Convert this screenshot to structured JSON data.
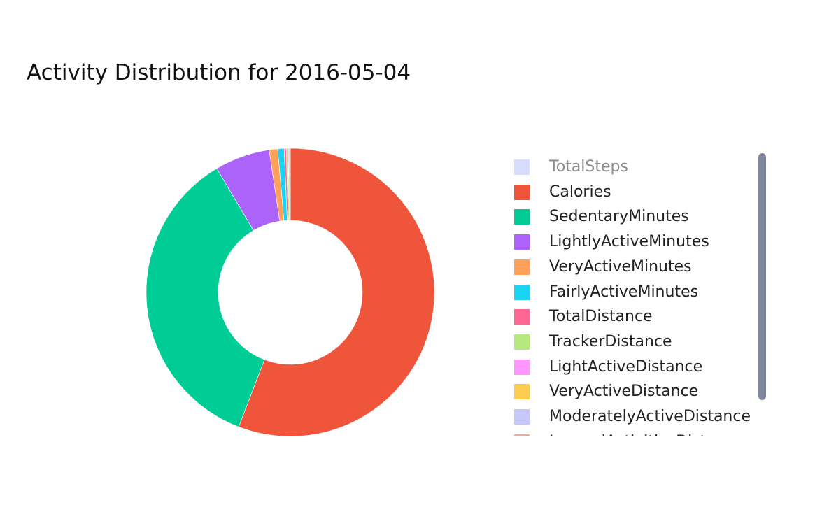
{
  "chart_data": {
    "type": "pie",
    "hole": 0.5,
    "title": "Activity Distribution for 2016-05-04",
    "legend_position": "right",
    "labels": [
      "TotalSteps",
      "Calories",
      "SedentaryMinutes",
      "LightlyActiveMinutes",
      "VeryActiveMinutes",
      "FairlyActiveMinutes",
      "TotalDistance",
      "TrackerDistance",
      "LightActiveDistance",
      "VeryActiveDistance",
      "ModeratelyActiveDistance",
      "LoggedActivitiesDistance"
    ],
    "values": [
      0,
      2350,
      1500,
      260,
      40,
      30,
      9.6,
      9.6,
      5.5,
      3.2,
      0.9,
      0
    ],
    "colors": [
      "#b3b8fb",
      "#ef553b",
      "#00cc96",
      "#ab63fa",
      "#ffa15a",
      "#19d3f3",
      "#ff6692",
      "#b6e880",
      "#ff97ff",
      "#fecb52",
      "#c5c8f8",
      "#f2a89b"
    ],
    "hidden": [
      "TotalSteps"
    ]
  }
}
